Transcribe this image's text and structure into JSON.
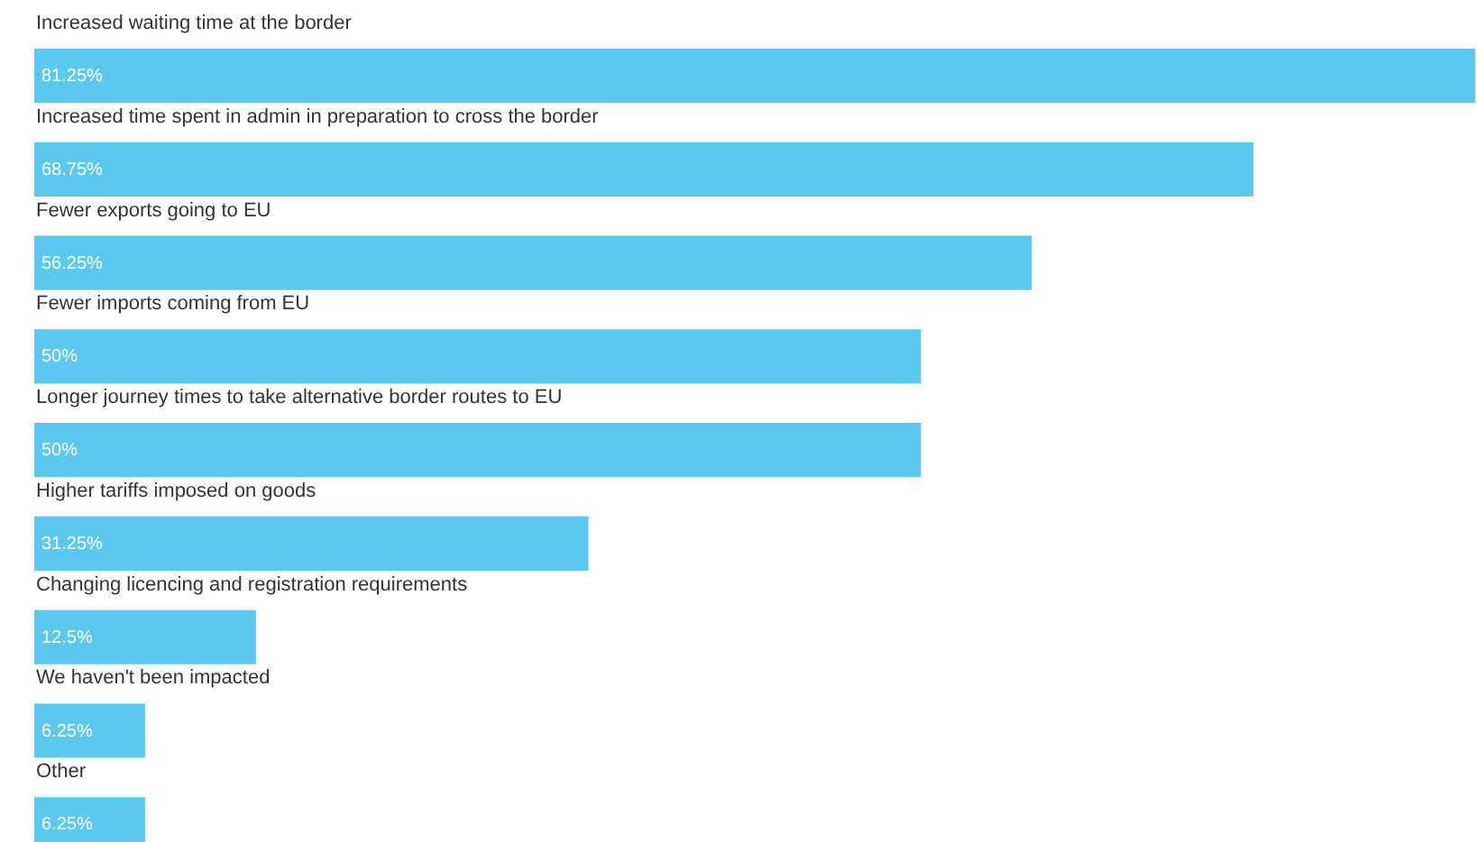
{
  "chart_data": {
    "type": "bar",
    "orientation": "horizontal",
    "categories": [
      "Increased waiting time at the border",
      "Increased time spent in admin in preparation to cross the border",
      "Fewer exports going to EU",
      "Fewer imports coming from EU",
      "Longer journey times to take alternative border routes to EU",
      "Higher tariffs imposed on goods",
      "Changing licencing and registration requirements",
      "We haven't been impacted",
      "Other"
    ],
    "values": [
      81.25,
      68.75,
      56.25,
      50,
      50,
      31.25,
      12.5,
      6.25,
      6.25
    ],
    "value_labels": [
      "81.25%",
      "68.75%",
      "56.25%",
      "50%",
      "50%",
      "31.25%",
      "12.5%",
      "6.25%",
      "6.25%"
    ],
    "color": "#5bc8f0"
  }
}
